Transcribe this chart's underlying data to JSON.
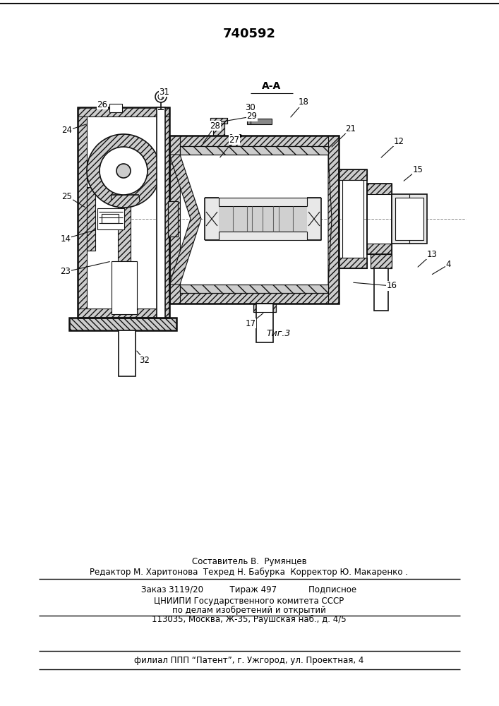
{
  "patent_number": "740592",
  "section_label": "A-A",
  "fig_label": "Τиг.3",
  "footer_line1": "Составитель В.  Румянцев",
  "footer_line2": "Редактор М. Харитонова  Техред Н. Бабурка  Корректор Ю. Макаренко .",
  "footer_line3": "Заказ 3119/20          Тираж 497            Подписное",
  "footer_line4": "ЦНИИПИ Государственного комитета СССР",
  "footer_line5": "по делам изобретений и открытий",
  "footer_line6": "113035, Москва, Ж-35, Раушская наб., д. 4/5",
  "footer_line7": "филиал ППП “Патент”, г. Ужгород, ул. Проектная, 4"
}
